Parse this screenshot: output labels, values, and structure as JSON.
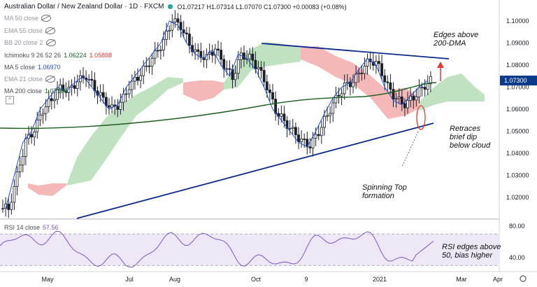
{
  "header": {
    "title": "Australian Dollar / New Zealand Dollar · 1D · FXCM",
    "ohlc": "O1.07217 H1.07314 L1.07070 C1.07300 +0.00083 (+0.08%)"
  },
  "legend": [
    {
      "label": "MA 50 close",
      "value": "",
      "hidden": true
    },
    {
      "label": "EMA 55 close",
      "value": "",
      "hidden": true
    },
    {
      "label": "BB 20 close 2",
      "value": "",
      "hidden": true
    },
    {
      "label": "Ichimoku 9 26 52 26",
      "value": "1.06224",
      "value2": "1.05888",
      "hidden": false
    },
    {
      "label": "MA 5 close",
      "value": "1.06970",
      "hidden": false
    },
    {
      "label": "EMA 21 close",
      "value": "",
      "hidden": true
    },
    {
      "label": "MA 200 close",
      "value": "1.07186",
      "hidden": false
    }
  ],
  "rsi_legend": {
    "label": "RSI 14 close",
    "value": "57.56"
  },
  "annotations": {
    "edges": "Edges above\n200-DMA",
    "retraces": "Retraces\nbrief dip\nbelow cloud",
    "spinning": "Spinning Top\nformation",
    "rsi": "RSI edges above\n50, bias higher"
  },
  "colors": {
    "up": "#26a69a",
    "down": "#ef5350",
    "candle": "#1b1f2b",
    "ma200": "#1b5e20",
    "ma5": "#1e4fd6",
    "cloud_bull": "#a5d6a7",
    "cloud_bear": "#ef9a9a",
    "trend": "#0d2a8a",
    "rsi": "#7e57c2",
    "price_tag": "#0b3a8a"
  },
  "chart_data": {
    "type": "candlestick",
    "symbol": "AUDNZD",
    "timeframe": "1D",
    "price_axis": {
      "ticks": [
        "1.10000",
        "1.09000",
        "1.08000",
        "1.07000",
        "1.06000",
        "1.05000",
        "1.04000",
        "1.03000",
        "1.02000"
      ],
      "last_price": "1.07300",
      "ylim": [
        1.01,
        1.105
      ]
    },
    "time_axis": {
      "ticks": [
        "May",
        "Jul",
        "Aug",
        "Oct",
        "9",
        "2021",
        "Mar",
        "Apr"
      ]
    },
    "series_approx_closes": [
      1.015,
      1.03,
      1.045,
      1.05,
      1.06,
      1.065,
      1.07,
      1.068,
      1.072,
      1.075,
      1.07,
      1.065,
      1.06,
      1.062,
      1.07,
      1.075,
      1.08,
      1.085,
      1.09,
      1.1,
      1.098,
      1.09,
      1.085,
      1.083,
      1.087,
      1.08,
      1.075,
      1.085,
      1.083,
      1.078,
      1.07,
      1.06,
      1.055,
      1.05,
      1.045,
      1.043,
      1.05,
      1.058,
      1.065,
      1.07,
      1.072,
      1.078,
      1.083,
      1.08,
      1.07,
      1.064,
      1.062,
      1.066,
      1.07,
      1.073
    ],
    "rsi": {
      "ticks": [
        "80.00",
        "40.00"
      ],
      "last": 57.56,
      "upper": 70,
      "lower": 30
    },
    "annotations_lines": [
      "upper trendline",
      "lower trendline",
      "arrow up",
      "ellipse dip",
      "dashed arrow"
    ]
  }
}
